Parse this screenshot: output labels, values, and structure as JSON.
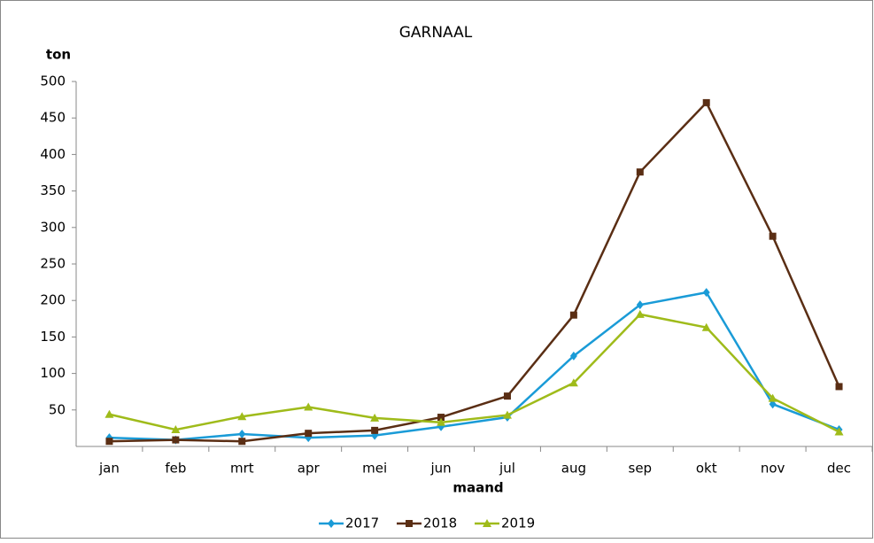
{
  "chart_data": {
    "type": "line",
    "title": "GARNAAL",
    "y_label": "ton",
    "x_label": "maand",
    "categories": [
      "jan",
      "feb",
      "mrt",
      "apr",
      "mei",
      "jun",
      "jul",
      "aug",
      "sep",
      "okt",
      "nov",
      "dec"
    ],
    "series": [
      {
        "name": "2017",
        "color": "#1a9bd7",
        "marker": "diamond",
        "values": [
          12,
          9,
          17,
          12,
          15,
          27,
          40,
          124,
          194,
          211,
          58,
          23
        ]
      },
      {
        "name": "2018",
        "color": "#5a2e14",
        "marker": "square",
        "values": [
          7,
          9,
          7,
          18,
          22,
          40,
          69,
          180,
          376,
          471,
          288,
          82
        ]
      },
      {
        "name": "2019",
        "color": "#9fbb1a",
        "marker": "triangle",
        "values": [
          44,
          23,
          41,
          54,
          39,
          33,
          43,
          87,
          181,
          163,
          66,
          20
        ]
      }
    ],
    "ylim": [
      0,
      500
    ],
    "yticks": [
      50,
      100,
      150,
      200,
      250,
      300,
      350,
      400,
      450,
      500
    ],
    "grid": false,
    "legend": "bottom"
  }
}
